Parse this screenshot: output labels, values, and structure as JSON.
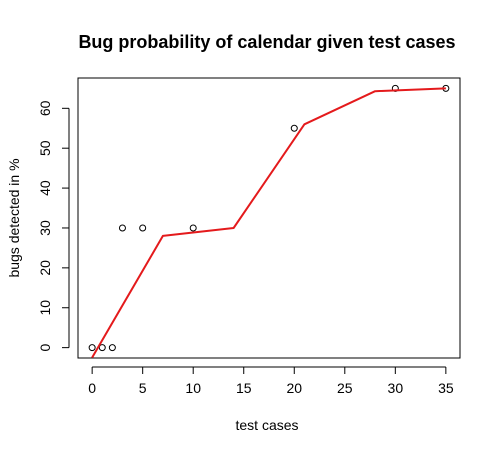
{
  "chart_data": {
    "type": "scatter",
    "title": "Bug probability of calendar given test cases",
    "xlabel": "test cases",
    "ylabel": "bugs detected in %",
    "xlim": [
      -1.4,
      36.4
    ],
    "ylim": [
      -2.6,
      67.6
    ],
    "x_ticks": [
      0,
      5,
      10,
      15,
      20,
      25,
      30,
      35
    ],
    "y_ticks": [
      0,
      10,
      20,
      30,
      40,
      50,
      60
    ],
    "grid": false,
    "legend": "none",
    "series": [
      {
        "kind": "points",
        "marker": "open-circle",
        "color": "#000000",
        "x": [
          0,
          1,
          2,
          3,
          5,
          10,
          20,
          30,
          35
        ],
        "y": [
          0,
          0,
          0,
          30,
          30,
          30,
          55,
          65,
          65
        ]
      },
      {
        "kind": "line",
        "color": "#e41a1c",
        "x": [
          0,
          7,
          14,
          21,
          28,
          35
        ],
        "y": [
          -2.5,
          28,
          30,
          56,
          64.3,
          65
        ]
      }
    ]
  }
}
